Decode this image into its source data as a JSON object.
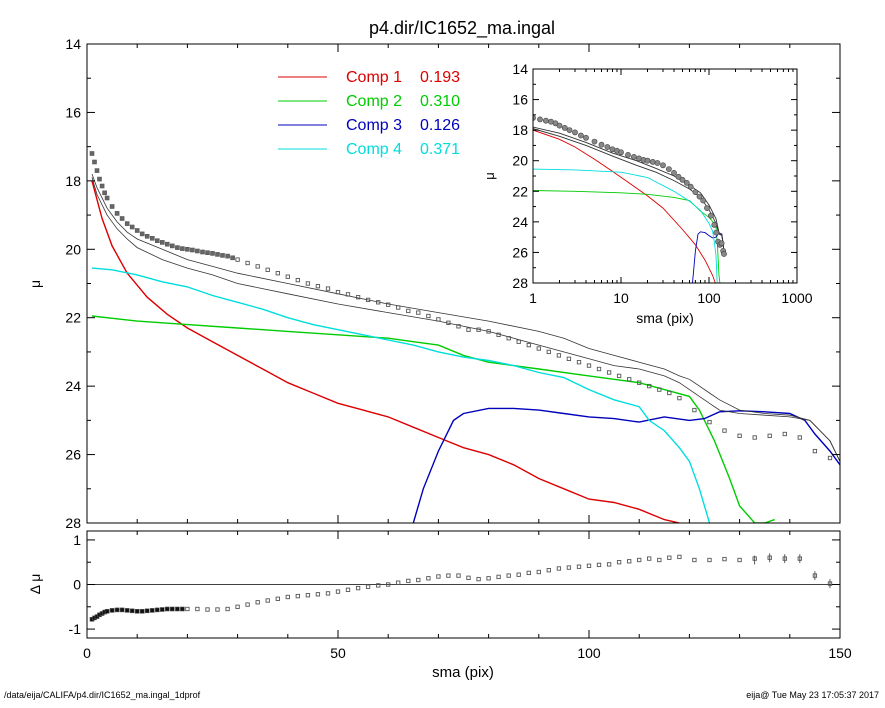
{
  "chart_data": [
    {
      "id": "main",
      "type": "line",
      "title": "p4.dir/IC1652_ma.ingal",
      "xlabel": "sma (pix)",
      "ylabel": "μ",
      "xlim": [
        0,
        150
      ],
      "ylim": [
        28,
        14
      ],
      "y_inverted": true,
      "xticks": [
        0,
        50,
        100,
        150
      ],
      "yticks": [
        14,
        16,
        18,
        20,
        22,
        24,
        26,
        28
      ],
      "legend_placement": "top-center",
      "legend": [
        {
          "label": "Comp 1",
          "value": "0.193",
          "color": "#dd0000"
        },
        {
          "label": "Comp 2",
          "value": "0.310",
          "color": "#00cc00"
        },
        {
          "label": "Comp 3",
          "value": "0.126",
          "color": "#0000bb"
        },
        {
          "label": "Comp 4",
          "value": "0.371",
          "color": "#00dddd"
        }
      ],
      "series": [
        {
          "name": "Comp 1",
          "color": "#dd0000",
          "x": [
            1,
            3,
            5,
            8,
            12,
            16,
            20,
            25,
            30,
            35,
            40,
            45,
            50,
            55,
            60,
            65,
            70,
            75,
            80,
            85,
            90,
            95,
            100,
            105,
            110,
            115,
            118
          ],
          "y": [
            18.0,
            19.1,
            19.9,
            20.7,
            21.4,
            21.9,
            22.3,
            22.7,
            23.1,
            23.5,
            23.9,
            24.2,
            24.5,
            24.7,
            24.9,
            25.2,
            25.5,
            25.8,
            26.0,
            26.3,
            26.7,
            27.0,
            27.3,
            27.4,
            27.6,
            27.9,
            28.0
          ]
        },
        {
          "name": "Comp 2",
          "color": "#00cc00",
          "x": [
            1,
            10,
            20,
            30,
            40,
            50,
            60,
            65,
            70,
            75,
            80,
            90,
            100,
            105,
            110,
            115,
            120,
            122,
            125,
            128,
            130,
            133,
            135,
            137
          ],
          "y": [
            21.95,
            22.1,
            22.2,
            22.3,
            22.4,
            22.5,
            22.6,
            22.7,
            22.8,
            23.1,
            23.3,
            23.5,
            23.7,
            23.8,
            23.9,
            24.1,
            24.3,
            24.7,
            25.6,
            26.7,
            27.5,
            28.0,
            28.0,
            27.9
          ]
        },
        {
          "name": "Comp 3",
          "color": "#0000bb",
          "x": [
            65,
            67,
            70,
            73,
            75,
            80,
            85,
            90,
            95,
            100,
            105,
            110,
            115,
            120,
            123,
            126,
            130,
            135,
            140,
            143,
            145,
            148,
            150
          ],
          "y": [
            28.0,
            27.0,
            25.9,
            25.0,
            24.8,
            24.65,
            24.65,
            24.7,
            24.8,
            24.9,
            24.95,
            25.05,
            24.9,
            25.0,
            24.95,
            24.75,
            24.72,
            24.75,
            24.8,
            25.0,
            25.4,
            25.9,
            26.3
          ]
        },
        {
          "name": "Comp 4",
          "color": "#00dddd",
          "x": [
            1,
            5,
            10,
            15,
            20,
            25,
            30,
            35,
            40,
            45,
            50,
            55,
            60,
            65,
            70,
            75,
            80,
            85,
            90,
            95,
            100,
            105,
            110,
            112,
            115,
            118,
            120,
            122,
            124
          ],
          "y": [
            20.55,
            20.6,
            20.75,
            20.95,
            21.1,
            21.35,
            21.55,
            21.75,
            22.0,
            22.2,
            22.35,
            22.5,
            22.65,
            22.8,
            23.0,
            23.15,
            23.25,
            23.4,
            23.6,
            23.75,
            24.1,
            24.4,
            24.6,
            25.0,
            25.3,
            25.8,
            26.2,
            27.0,
            28.0
          ]
        },
        {
          "name": "",
          "color": "#333333",
          "x": [
            1,
            2,
            4,
            6,
            8,
            10,
            15,
            20,
            25,
            30,
            40,
            50,
            60,
            70,
            80,
            90,
            100,
            105,
            110,
            115,
            118,
            120,
            122,
            124,
            126,
            130,
            135,
            140,
            144,
            148,
            150
          ],
          "y": [
            17.9,
            18.4,
            19.0,
            19.4,
            19.7,
            19.95,
            20.3,
            20.55,
            20.75,
            21.0,
            21.3,
            21.6,
            21.85,
            22.1,
            22.4,
            22.8,
            23.2,
            23.4,
            23.5,
            23.7,
            23.9,
            24.1,
            24.3,
            24.5,
            24.7,
            24.8,
            24.85,
            24.9,
            25.0,
            25.6,
            26.2
          ]
        },
        {
          "name": "",
          "color": "#333333",
          "x": [
            1,
            2,
            4,
            6,
            8,
            10,
            15,
            20,
            25,
            30,
            40,
            50,
            60,
            70,
            80,
            90,
            95,
            100,
            105,
            110,
            115,
            118,
            120,
            122,
            124,
            126,
            130,
            135,
            140,
            144,
            148,
            150
          ],
          "y": [
            17.8,
            18.2,
            18.8,
            19.2,
            19.5,
            19.7,
            20.0,
            20.3,
            20.5,
            20.7,
            21.0,
            21.3,
            21.6,
            21.85,
            22.1,
            22.4,
            22.6,
            22.9,
            23.1,
            23.3,
            23.5,
            23.7,
            23.8,
            24.0,
            24.2,
            24.4,
            24.7,
            24.8,
            24.85,
            25.0,
            25.6,
            26.2
          ]
        }
      ],
      "data_points": {
        "name": "",
        "marker": "square",
        "color": "#555555",
        "x": [
          1,
          1.5,
          2,
          2.5,
          3,
          3.5,
          4,
          5,
          6,
          7,
          8,
          9,
          10,
          11,
          12,
          13,
          14,
          15,
          16,
          17,
          18,
          19,
          20,
          21,
          22,
          23,
          24,
          25,
          26,
          27,
          28,
          29,
          30,
          32,
          34,
          36,
          38,
          40,
          42,
          44,
          46,
          48,
          50,
          52,
          54,
          56,
          58,
          60,
          62,
          64,
          66,
          68,
          70,
          72,
          74,
          76,
          78,
          80,
          82,
          84,
          86,
          88,
          90,
          92,
          94,
          96,
          98,
          100,
          102,
          104,
          106,
          108,
          110,
          112,
          114,
          116,
          118,
          121,
          124,
          127,
          130,
          133,
          136,
          139,
          142,
          145,
          148
        ],
        "y": [
          17.2,
          17.45,
          17.7,
          17.95,
          18.15,
          18.35,
          18.5,
          18.75,
          18.95,
          19.1,
          19.25,
          19.35,
          19.45,
          19.55,
          19.62,
          19.68,
          19.75,
          19.8,
          19.85,
          19.9,
          19.95,
          19.98,
          20.0,
          20.02,
          20.05,
          20.08,
          20.1,
          20.12,
          20.15,
          20.18,
          20.2,
          20.25,
          20.3,
          20.4,
          20.5,
          20.6,
          20.7,
          20.8,
          20.9,
          21.0,
          21.08,
          21.15,
          21.25,
          21.32,
          21.4,
          21.48,
          21.55,
          21.62,
          21.7,
          21.8,
          21.85,
          21.95,
          22.05,
          22.15,
          22.25,
          22.35,
          22.35,
          22.4,
          22.5,
          22.6,
          22.7,
          22.8,
          22.9,
          23.0,
          23.1,
          23.2,
          23.3,
          23.4,
          23.5,
          23.6,
          23.7,
          23.8,
          23.9,
          24.0,
          24.1,
          24.2,
          24.35,
          24.7,
          25.05,
          25.3,
          25.45,
          25.5,
          25.45,
          25.4,
          25.5,
          25.9,
          26.1
        ]
      }
    },
    {
      "id": "residual",
      "type": "scatter",
      "title": "",
      "xlabel": "sma (pix)",
      "ylabel": "Δ μ",
      "xlim": [
        0,
        150
      ],
      "ylim": [
        -1.2,
        1.2
      ],
      "xticks": [
        0,
        50,
        100,
        150
      ],
      "yticks": [
        -1,
        0,
        1
      ],
      "zero_line": 0,
      "x": [
        1,
        1.5,
        2,
        2.5,
        3,
        3.5,
        4,
        5,
        6,
        7,
        8,
        9,
        10,
        11,
        12,
        13,
        14,
        15,
        16,
        17,
        18,
        19,
        20,
        22,
        24,
        26,
        28,
        30,
        32,
        34,
        36,
        38,
        40,
        42,
        44,
        46,
        48,
        50,
        52,
        54,
        56,
        58,
        60,
        62,
        64,
        66,
        68,
        70,
        72,
        74,
        76,
        78,
        80,
        82,
        84,
        86,
        88,
        90,
        92,
        94,
        96,
        98,
        100,
        102,
        104,
        106,
        108,
        110,
        112,
        114,
        116,
        118,
        121,
        124,
        127,
        130,
        133,
        136,
        139,
        142,
        145,
        148
      ],
      "y": [
        -0.78,
        -0.75,
        -0.72,
        -0.68,
        -0.65,
        -0.62,
        -0.6,
        -0.58,
        -0.57,
        -0.57,
        -0.58,
        -0.59,
        -0.6,
        -0.6,
        -0.59,
        -0.58,
        -0.57,
        -0.56,
        -0.55,
        -0.55,
        -0.55,
        -0.55,
        -0.55,
        -0.55,
        -0.56,
        -0.56,
        -0.55,
        -0.5,
        -0.45,
        -0.4,
        -0.36,
        -0.32,
        -0.28,
        -0.26,
        -0.24,
        -0.22,
        -0.2,
        -0.16,
        -0.12,
        -0.08,
        -0.05,
        -0.02,
        0.0,
        0.04,
        0.08,
        0.1,
        0.14,
        0.18,
        0.2,
        0.2,
        0.15,
        0.12,
        0.14,
        0.17,
        0.2,
        0.22,
        0.26,
        0.28,
        0.32,
        0.36,
        0.38,
        0.4,
        0.42,
        0.44,
        0.45,
        0.5,
        0.52,
        0.55,
        0.58,
        0.55,
        0.6,
        0.62,
        0.55,
        0.55,
        0.57,
        0.55,
        0.58,
        0.6,
        0.58,
        0.58,
        0.2,
        0.02
      ],
      "error_bars": [
        [
          133,
          0.55
        ],
        [
          136,
          0.6
        ],
        [
          139,
          0.58
        ],
        [
          142,
          0.58
        ],
        [
          145,
          0.2
        ],
        [
          148,
          0.02
        ]
      ],
      "error_size": 0.1
    },
    {
      "id": "inset",
      "type": "line",
      "xlabel": "sma (pix)",
      "ylabel": "μ",
      "x_scale": "log",
      "xlim": [
        1,
        1000
      ],
      "ylim": [
        28,
        14
      ],
      "y_inverted": true,
      "xticks": [
        1,
        10,
        100,
        1000
      ],
      "xtick_labels": [
        "1",
        "10",
        "100",
        "1000"
      ],
      "yticks": [
        14,
        16,
        18,
        20,
        22,
        24,
        26,
        28
      ],
      "series": [
        {
          "name": "Comp 1",
          "color": "#dd0000",
          "x": [
            1,
            2,
            3,
            5,
            8,
            12,
            20,
            30,
            50,
            70,
            90,
            110,
            118
          ],
          "y": [
            18.0,
            18.6,
            19.1,
            19.9,
            20.7,
            21.4,
            22.3,
            23.1,
            24.5,
            25.5,
            26.5,
            27.5,
            28.0
          ]
        },
        {
          "name": "Comp 2",
          "color": "#00cc00",
          "x": [
            1,
            3,
            10,
            20,
            40,
            60,
            80,
            100,
            115,
            120,
            125,
            130,
            133
          ],
          "y": [
            21.95,
            22.0,
            22.1,
            22.2,
            22.4,
            22.6,
            23.3,
            23.7,
            24.1,
            24.3,
            25.6,
            27.5,
            28.0
          ]
        },
        {
          "name": "Comp 3",
          "color": "#0000bb",
          "x": [
            65,
            70,
            75,
            80,
            90,
            100,
            110,
            120,
            130,
            140,
            148
          ],
          "y": [
            28.0,
            25.9,
            24.8,
            24.65,
            24.7,
            24.9,
            25.05,
            25.0,
            24.72,
            24.8,
            25.9
          ]
        },
        {
          "name": "Comp 4",
          "color": "#00dddd",
          "x": [
            1,
            3,
            10,
            20,
            40,
            60,
            80,
            100,
            110,
            115,
            120,
            124
          ],
          "y": [
            20.55,
            20.6,
            20.75,
            21.1,
            22.0,
            22.65,
            23.25,
            24.1,
            24.6,
            25.3,
            26.2,
            28.0
          ]
        },
        {
          "name": "",
          "color": "#333333",
          "x": [
            1,
            2,
            4,
            8,
            15,
            25,
            40,
            60,
            80,
            100,
            120,
            130,
            140,
            150
          ],
          "y": [
            17.9,
            18.4,
            19.0,
            19.7,
            20.3,
            20.75,
            21.3,
            21.85,
            22.4,
            23.2,
            24.1,
            24.8,
            24.9,
            26.2
          ]
        },
        {
          "name": "",
          "color": "#333333",
          "x": [
            1,
            2,
            4,
            8,
            15,
            25,
            40,
            60,
            80,
            100,
            120,
            130,
            140,
            150
          ],
          "y": [
            17.8,
            18.2,
            18.8,
            19.5,
            20.0,
            20.5,
            21.0,
            21.6,
            22.1,
            22.9,
            23.8,
            24.7,
            24.85,
            26.2
          ]
        }
      ],
      "data_points": {
        "name": "",
        "marker": "circle",
        "color": "#555555",
        "x": [
          1,
          1.2,
          1.4,
          1.6,
          1.8,
          2,
          2.3,
          2.6,
          3,
          3.5,
          4,
          5,
          6,
          7,
          8,
          9,
          10,
          12,
          14,
          16,
          18,
          20,
          23,
          26,
          30,
          35,
          40,
          45,
          50,
          56,
          62,
          70,
          78,
          86,
          95,
          105,
          115,
          121,
          127,
          133,
          139,
          145,
          148
        ],
        "y": [
          17.2,
          17.3,
          17.38,
          17.45,
          17.55,
          17.7,
          17.85,
          18.0,
          18.15,
          18.35,
          18.5,
          18.75,
          18.95,
          19.1,
          19.25,
          19.35,
          19.45,
          19.62,
          19.75,
          19.85,
          19.95,
          20.0,
          20.08,
          20.15,
          20.3,
          20.55,
          20.8,
          21.05,
          21.25,
          21.45,
          21.7,
          22.05,
          22.35,
          22.6,
          23.1,
          23.6,
          24.2,
          24.7,
          25.3,
          25.5,
          25.4,
          25.9,
          26.1
        ]
      }
    }
  ],
  "footer": {
    "left": "/data/eija/CALIFA/p4.dir/IC1652_ma.ingal_1dprof",
    "right": "eija@  Tue May 23 17:05:37 2017"
  }
}
